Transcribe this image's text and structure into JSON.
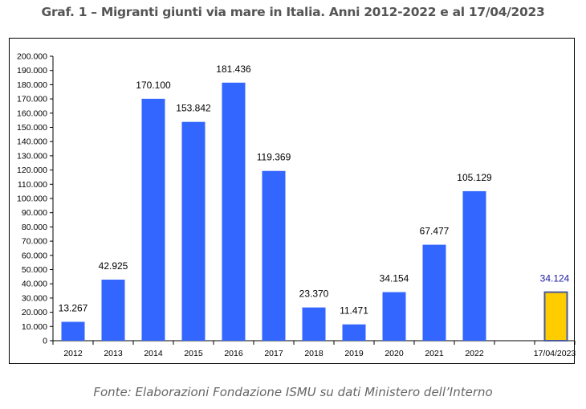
{
  "title": "Graf. 1 – Migranti giunti via mare in Italia. Anni 2012-2022 e al 17/04/2023",
  "source": "Fonte: Elaborazioni Fondazione ISMU su dati Ministero dell’Interno",
  "colors": {
    "bar": "#3366ff",
    "highlight_bar": "#ffcc00",
    "highlight_border": "#4a5a9a",
    "highlight_label": "#1a1aa6",
    "label": "#000000"
  },
  "chart_data": {
    "type": "bar",
    "title": "Graf. 1 – Migranti giunti via mare in Italia. Anni 2012-2022 e al 17/04/2023",
    "xlabel": "",
    "ylabel": "",
    "ylim": [
      0,
      200000
    ],
    "grid": false,
    "categories": [
      "2012",
      "2013",
      "2014",
      "2015",
      "2016",
      "2017",
      "2018",
      "2019",
      "2020",
      "2021",
      "2022",
      "",
      "17/04/2023"
    ],
    "values": [
      13267,
      42925,
      170100,
      153842,
      181436,
      119369,
      23370,
      11471,
      34154,
      67477,
      105129,
      null,
      34124
    ],
    "data_labels": [
      "13.267",
      "42.925",
      "170.100",
      "153.842",
      "181.436",
      "119.369",
      "23.370",
      "11.471",
      "34.154",
      "67.477",
      "105.129",
      "",
      "34.124"
    ],
    "highlight_index": 12,
    "yticks": [
      0,
      10000,
      20000,
      30000,
      40000,
      50000,
      60000,
      70000,
      80000,
      90000,
      100000,
      110000,
      120000,
      130000,
      140000,
      150000,
      160000,
      170000,
      180000,
      190000,
      200000
    ],
    "ytick_labels": [
      "0",
      "10.000",
      "20.000",
      "30.000",
      "40.000",
      "50.000",
      "60.000",
      "70.000",
      "80.000",
      "90.000",
      "100.000",
      "110.000",
      "120.000",
      "130.000",
      "140.000",
      "150.000",
      "160.000",
      "170.000",
      "180.000",
      "190.000",
      "200.000"
    ]
  }
}
